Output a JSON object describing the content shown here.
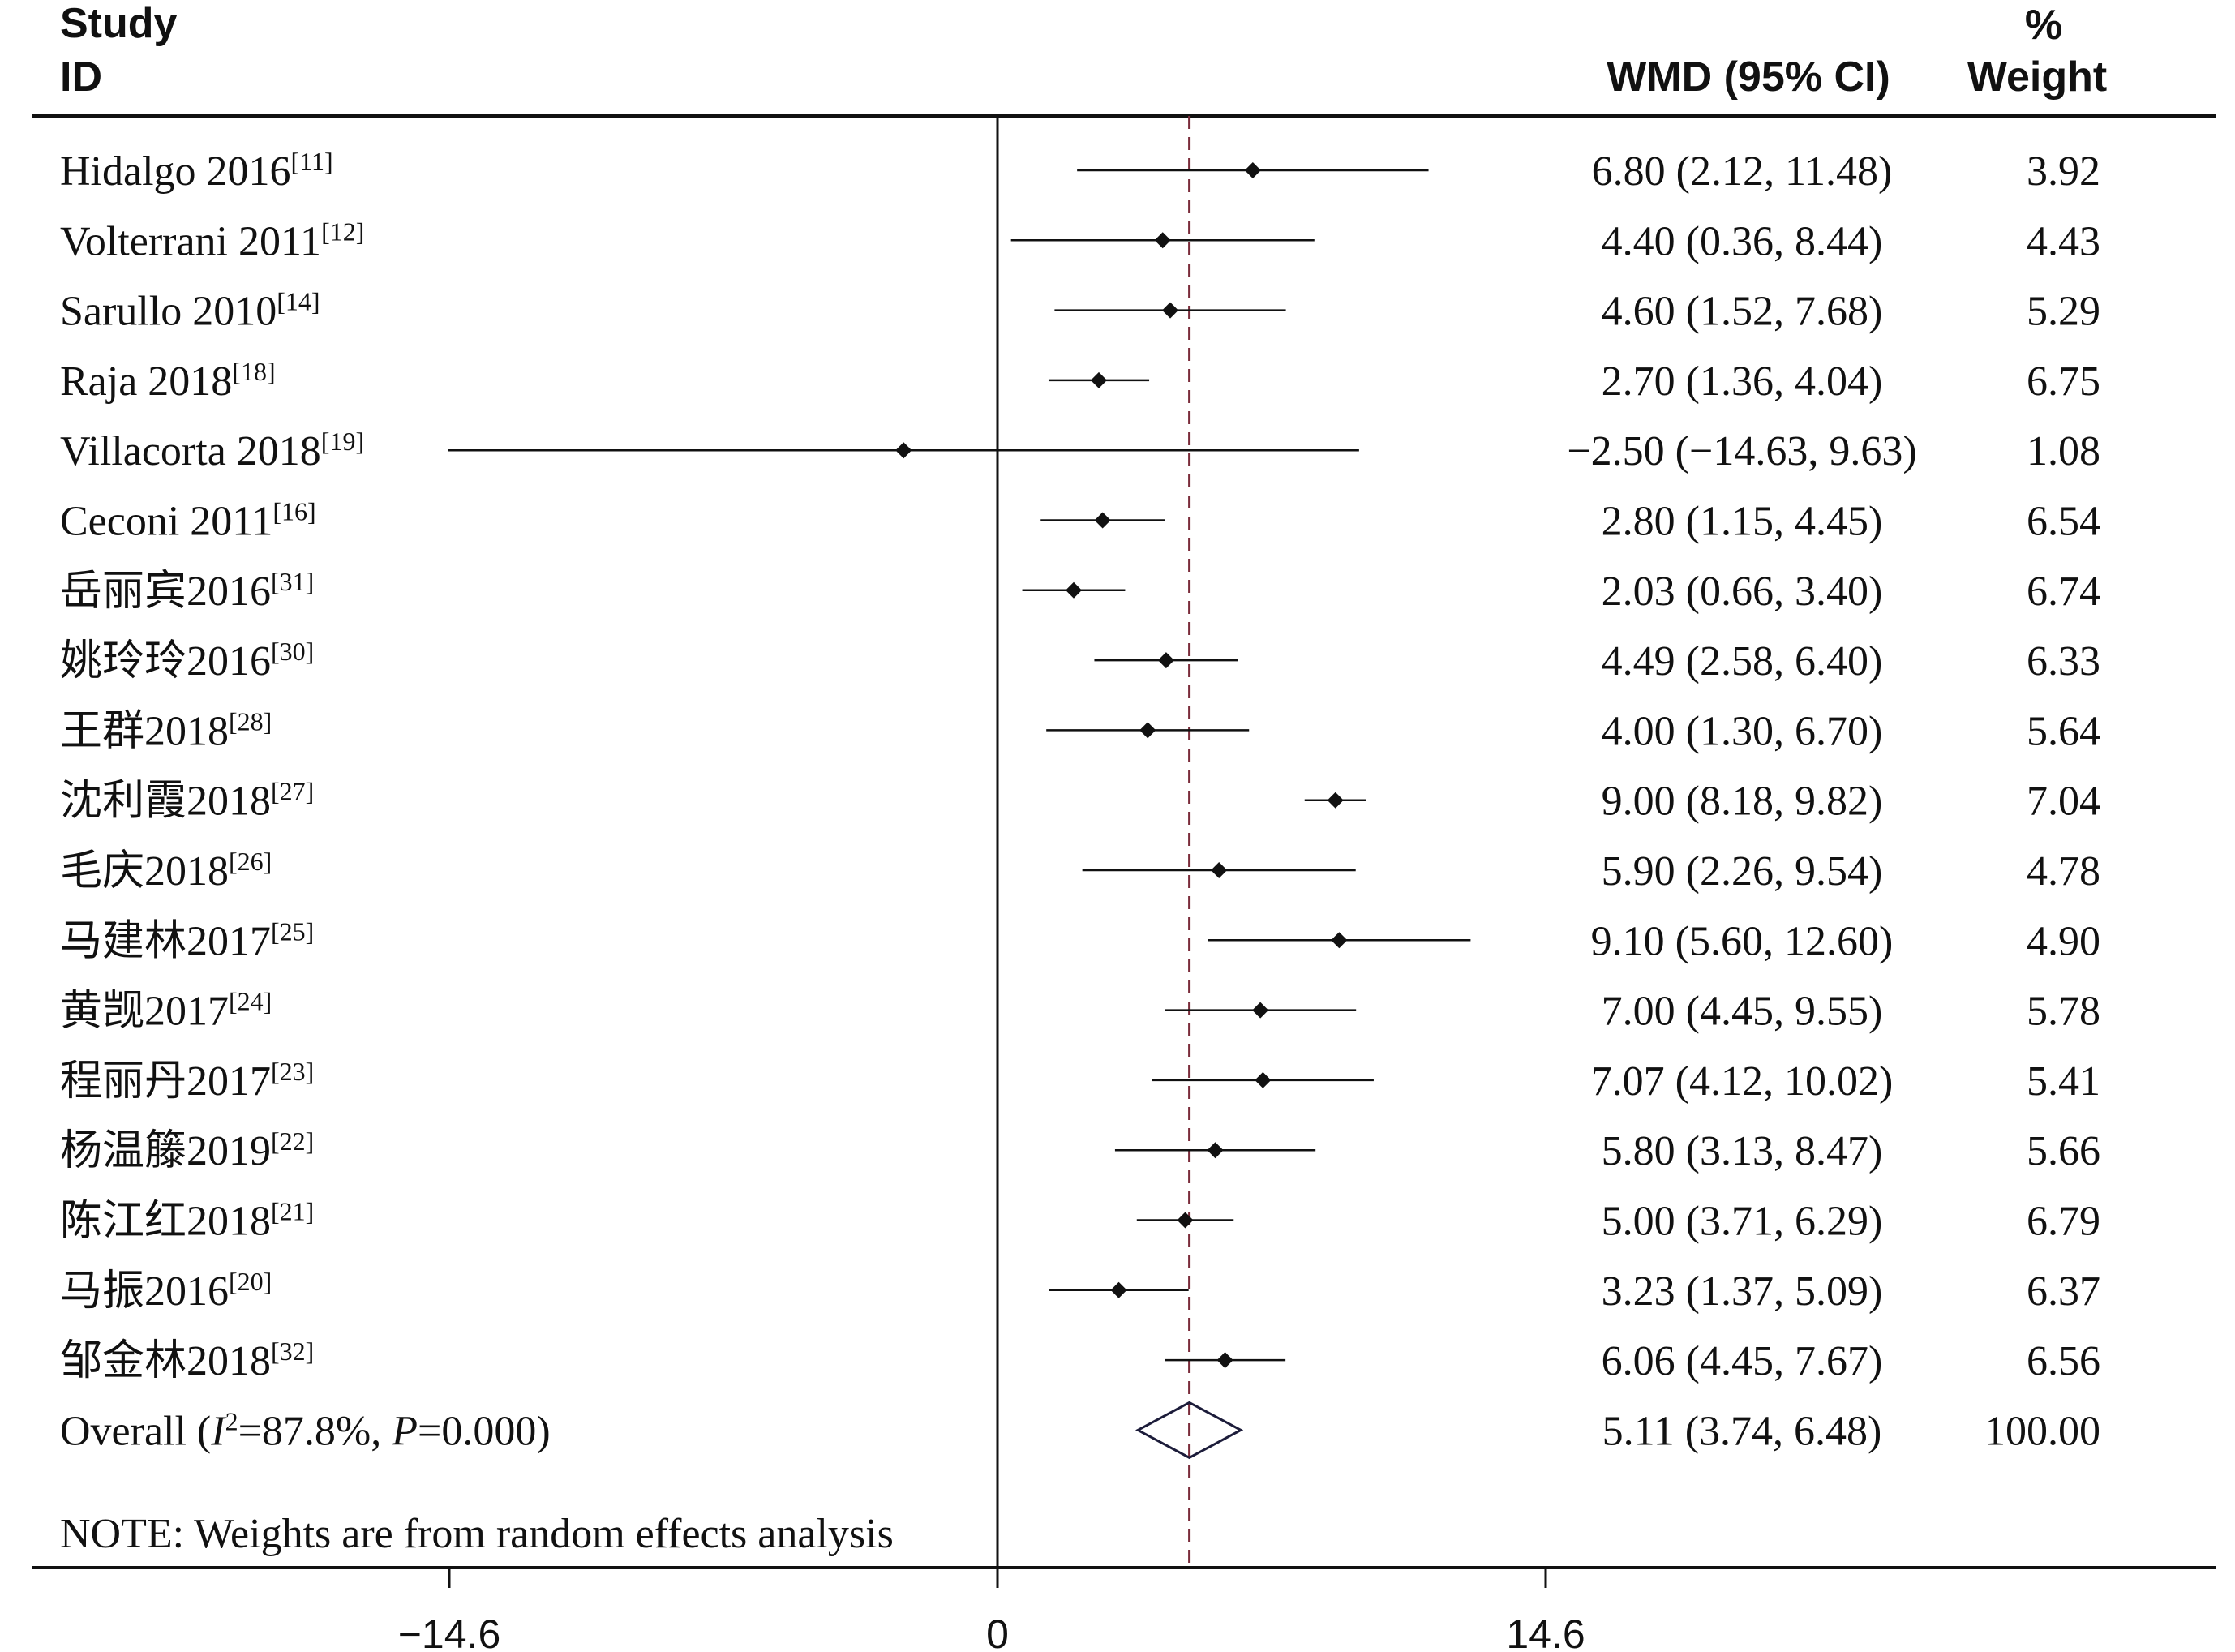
{
  "chart_data": {
    "type": "forest",
    "headers": {
      "study_line1": "Study",
      "study_line2": "ID",
      "effect": "WMD (95% CI)",
      "weight_line1": "%",
      "weight_line2": "Weight"
    },
    "studies": [
      {
        "name": "Hidalgo 2016",
        "ref": "[11]",
        "est": 6.8,
        "lo": 2.12,
        "hi": 11.48,
        "ci_text": "6.80 (2.12, 11.48)",
        "weight": 3.92,
        "weight_text": "3.92"
      },
      {
        "name": "Volterrani 2011",
        "ref": "[12]",
        "est": 4.4,
        "lo": 0.36,
        "hi": 8.44,
        "ci_text": "4.40 (0.36, 8.44)",
        "weight": 4.43,
        "weight_text": "4.43"
      },
      {
        "name": "Sarullo 2010",
        "ref": "[14]",
        "est": 4.6,
        "lo": 1.52,
        "hi": 7.68,
        "ci_text": "4.60 (1.52, 7.68)",
        "weight": 5.29,
        "weight_text": "5.29"
      },
      {
        "name": "Raja 2018",
        "ref": "[18]",
        "est": 2.7,
        "lo": 1.36,
        "hi": 4.04,
        "ci_text": "2.70 (1.36, 4.04)",
        "weight": 6.75,
        "weight_text": "6.75"
      },
      {
        "name": "Villacorta 2018",
        "ref": "[19]",
        "est": -2.5,
        "lo": -14.63,
        "hi": 9.63,
        "ci_text": "−2.50 (−14.63, 9.63)",
        "weight": 1.08,
        "weight_text": "1.08"
      },
      {
        "name": "Ceconi 2011",
        "ref": "[16]",
        "est": 2.8,
        "lo": 1.15,
        "hi": 4.45,
        "ci_text": "2.80 (1.15, 4.45)",
        "weight": 6.54,
        "weight_text": "6.54"
      },
      {
        "name": "岳丽宾2016",
        "ref": "[31]",
        "est": 2.03,
        "lo": 0.66,
        "hi": 3.4,
        "ci_text": "2.03 (0.66, 3.40)",
        "weight": 6.74,
        "weight_text": "6.74"
      },
      {
        "name": "姚玲玲2016",
        "ref": "[30]",
        "est": 4.49,
        "lo": 2.58,
        "hi": 6.4,
        "ci_text": "4.49 (2.58, 6.40)",
        "weight": 6.33,
        "weight_text": "6.33"
      },
      {
        "name": "王群2018",
        "ref": "[28]",
        "est": 4.0,
        "lo": 1.3,
        "hi": 6.7,
        "ci_text": "4.00 (1.30, 6.70)",
        "weight": 5.64,
        "weight_text": "5.64"
      },
      {
        "name": "沈利霞2018",
        "ref": "[27]",
        "est": 9.0,
        "lo": 8.18,
        "hi": 9.82,
        "ci_text": "9.00 (8.18, 9.82)",
        "weight": 7.04,
        "weight_text": "7.04"
      },
      {
        "name": "毛庆2018",
        "ref": "[26]",
        "est": 5.9,
        "lo": 2.26,
        "hi": 9.54,
        "ci_text": "5.90 (2.26, 9.54)",
        "weight": 4.78,
        "weight_text": "4.78"
      },
      {
        "name": "马建林2017",
        "ref": "[25]",
        "est": 9.1,
        "lo": 5.6,
        "hi": 12.6,
        "ci_text": "9.10 (5.60, 12.60)",
        "weight": 4.9,
        "weight_text": "4.90"
      },
      {
        "name": "黄觊2017",
        "ref": "[24]",
        "est": 7.0,
        "lo": 4.45,
        "hi": 9.55,
        "ci_text": "7.00 (4.45, 9.55)",
        "weight": 5.78,
        "weight_text": "5.78"
      },
      {
        "name": "程丽丹2017",
        "ref": "[23]",
        "est": 7.07,
        "lo": 4.12,
        "hi": 10.02,
        "ci_text": "7.07 (4.12, 10.02)",
        "weight": 5.41,
        "weight_text": "5.41"
      },
      {
        "name": "杨温籐2019",
        "ref": "[22]",
        "est": 5.8,
        "lo": 3.13,
        "hi": 8.47,
        "ci_text": "5.80 (3.13, 8.47)",
        "weight": 5.66,
        "weight_text": "5.66"
      },
      {
        "name": "陈江红2018",
        "ref": "[21]",
        "est": 5.0,
        "lo": 3.71,
        "hi": 6.29,
        "ci_text": "5.00 (3.71, 6.29)",
        "weight": 6.79,
        "weight_text": "6.79"
      },
      {
        "name": "马振2016",
        "ref": "[20]",
        "est": 3.23,
        "lo": 1.37,
        "hi": 5.09,
        "ci_text": "3.23 (1.37, 5.09)",
        "weight": 6.37,
        "weight_text": "6.37"
      },
      {
        "name": "邹金林2018",
        "ref": "[32]",
        "est": 6.06,
        "lo": 4.45,
        "hi": 7.67,
        "ci_text": "6.06 (4.45, 7.67)",
        "weight": 6.56,
        "weight_text": "6.56"
      }
    ],
    "overall": {
      "prefix": "Overall  (",
      "i2_symbol": "I",
      "i2_exp": "2",
      "i2_value": "=87.8%, ",
      "p_symbol": "P",
      "p_value": "=0.000)",
      "est": 5.11,
      "lo": 3.74,
      "hi": 6.48,
      "ci_text": "5.11 (3.74, 6.48)",
      "weight_text": "100.00"
    },
    "note": "NOTE: Weights are from random effects analysis",
    "xaxis": {
      "range": [
        -14.6,
        14.6
      ],
      "ticks": [
        -14.6,
        0,
        14.6
      ],
      "tick_labels": [
        "−14.6",
        "0",
        "14.6"
      ]
    },
    "null_line": 0,
    "pooled_line": 5.11,
    "colors": {
      "ink": "#111111",
      "pooled_line": "#7a2b3a",
      "diamond": "#1c1c3a"
    }
  }
}
